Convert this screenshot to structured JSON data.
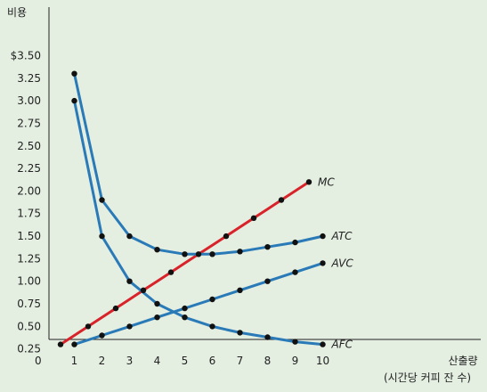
{
  "chart_data": {
    "type": "line",
    "ylabel": "비용",
    "xlabel": "산출량",
    "xlabel_sub": "(시간당 커피 잔 수)",
    "origin_label": "0",
    "x_ticks": [
      1,
      2,
      3,
      4,
      5,
      6,
      7,
      8,
      9,
      10
    ],
    "x_tick_labels": [
      "1",
      "2",
      "3",
      "4",
      "5",
      "6",
      "7",
      "8",
      "9",
      "10"
    ],
    "y_ticks": [
      0.25,
      0.5,
      0.75,
      1.0,
      1.25,
      1.5,
      1.75,
      2.0,
      2.25,
      2.5,
      2.75,
      3.0,
      3.25,
      3.5
    ],
    "y_tick_labels": [
      "0.25",
      "0.50",
      "0.75",
      "1.00",
      "1.25",
      "1.50",
      "1.75",
      "2.00",
      "2.25",
      "2.50",
      "2.75",
      "3.00",
      "3.25",
      "$3.50"
    ],
    "xlim": [
      0,
      11
    ],
    "ylim": [
      0,
      3.75
    ],
    "grid": false,
    "series": [
      {
        "name": "MC",
        "color": "#d8232a",
        "x": [
          0.5,
          1,
          1.5,
          2,
          2.5,
          3,
          3.5,
          4,
          4.5,
          5,
          5.5,
          6,
          6.5,
          7,
          7.5,
          8,
          8.5,
          9,
          9.5
        ],
        "values": [
          0.3,
          0.4,
          0.5,
          0.6,
          0.7,
          0.8,
          0.9,
          1.0,
          1.1,
          1.2,
          1.3,
          1.4,
          1.5,
          1.6,
          1.7,
          1.8,
          1.9,
          2.0,
          2.1
        ],
        "markers": [
          0.5,
          1.5,
          2.5,
          3.5,
          4.5,
          5.5,
          6.5,
          7.5,
          8.5,
          9.5
        ]
      },
      {
        "name": "ATC",
        "color": "#2a7ab8",
        "x": [
          1,
          2,
          3,
          4,
          5,
          6,
          7,
          8,
          9,
          10
        ],
        "values": [
          3.3,
          1.9,
          1.5,
          1.35,
          1.3,
          1.3,
          1.33,
          1.38,
          1.43,
          1.5
        ],
        "markers": [
          1,
          2,
          3,
          4,
          5,
          6,
          7,
          8,
          9,
          10
        ]
      },
      {
        "name": "AVC",
        "color": "#2a7ab8",
        "x": [
          1,
          2,
          3,
          4,
          5,
          6,
          7,
          8,
          9,
          10
        ],
        "values": [
          0.3,
          0.4,
          0.5,
          0.6,
          0.7,
          0.8,
          0.9,
          1.0,
          1.1,
          1.2
        ],
        "markers": [
          1,
          2,
          3,
          4,
          5,
          6,
          7,
          8,
          9,
          10
        ]
      },
      {
        "name": "AFC",
        "color": "#2a7ab8",
        "x": [
          1,
          2,
          3,
          4,
          5,
          6,
          7,
          8,
          9,
          10
        ],
        "values": [
          3.0,
          1.5,
          1.0,
          0.75,
          0.6,
          0.5,
          0.43,
          0.38,
          0.33,
          0.3
        ],
        "markers": [
          1,
          2,
          3,
          4,
          5,
          6,
          7,
          8,
          9,
          10
        ]
      }
    ]
  }
}
